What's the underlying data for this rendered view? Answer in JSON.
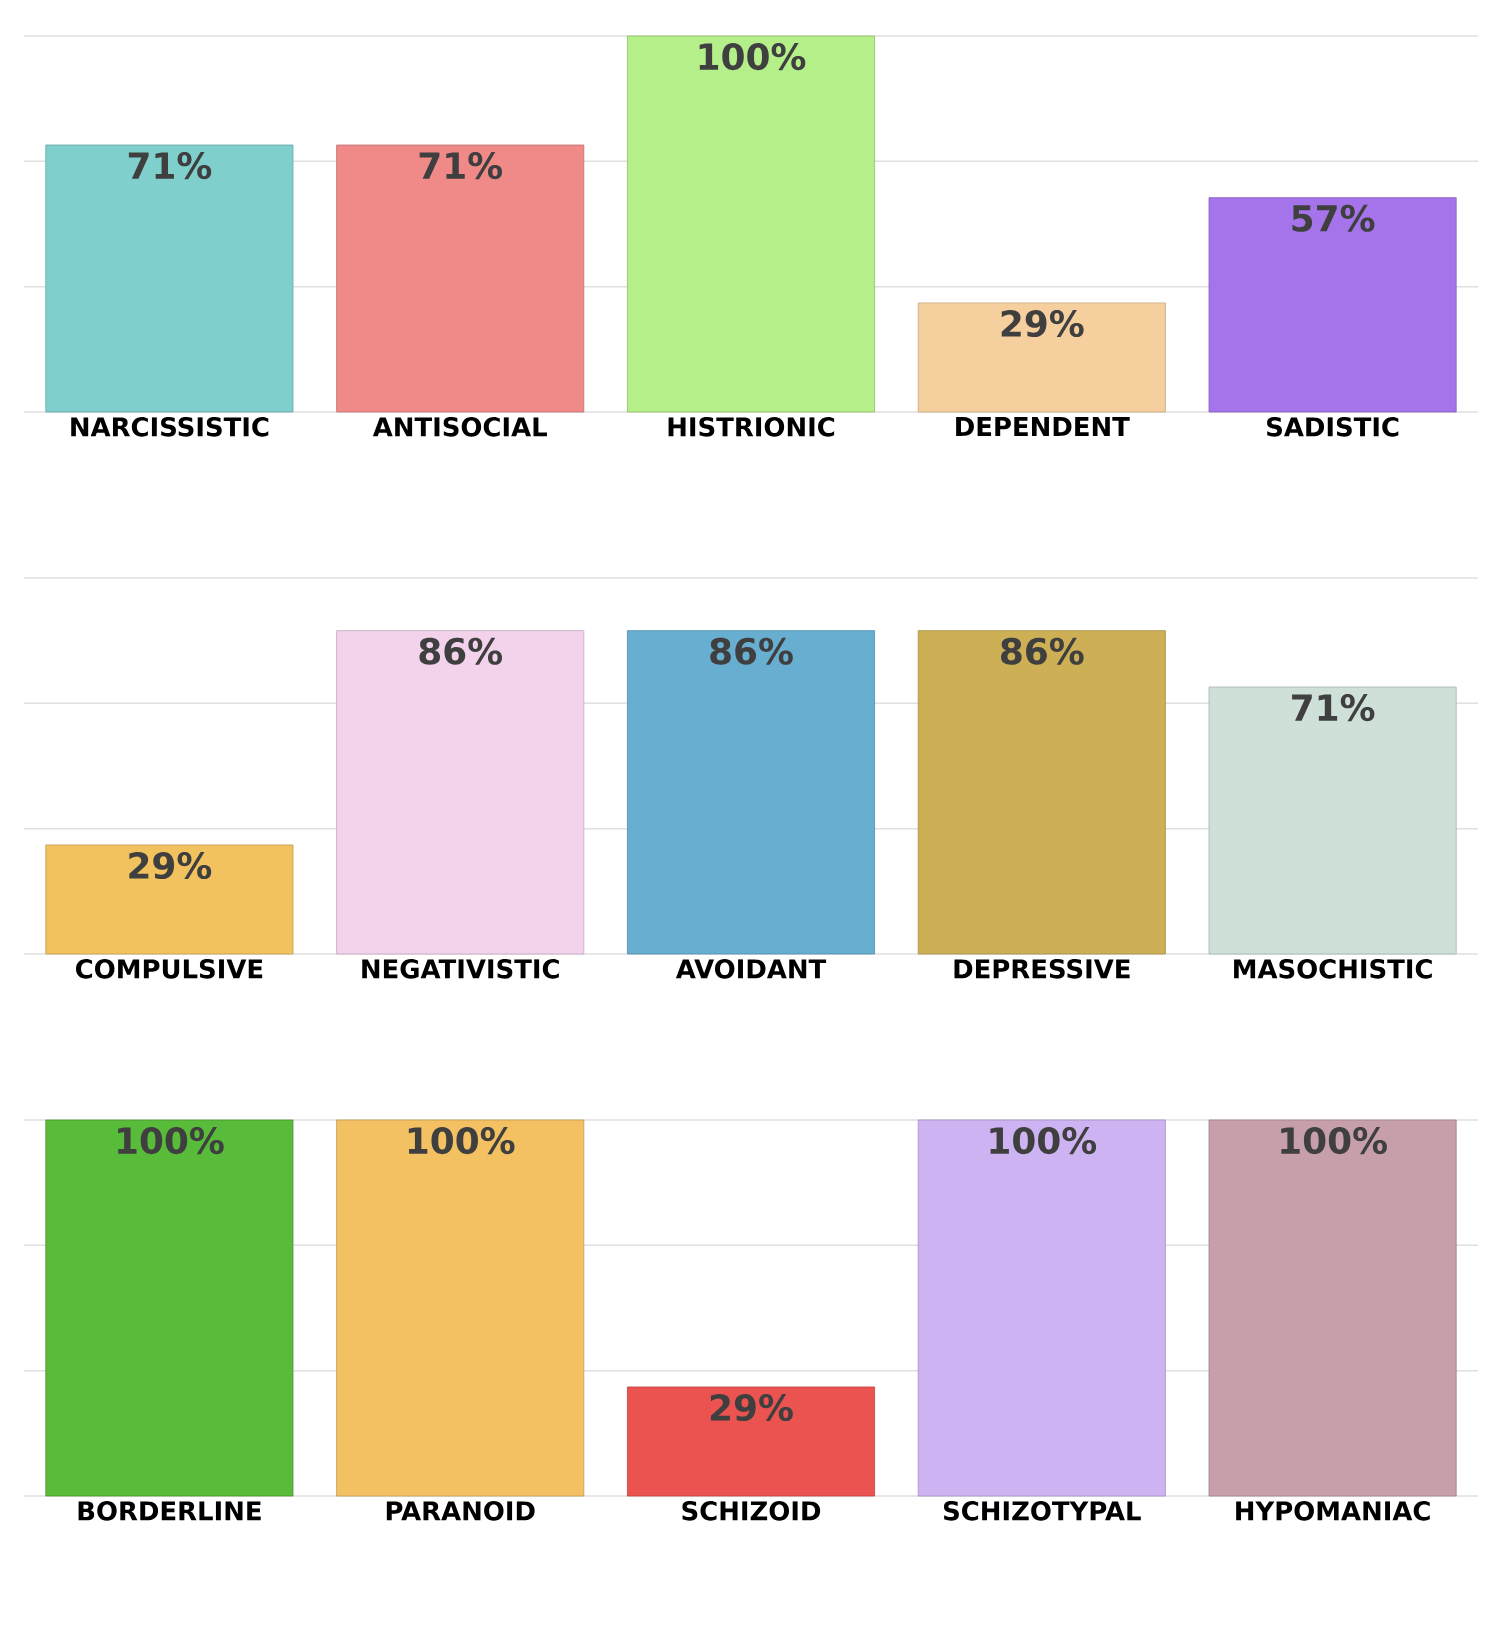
{
  "chart_data": [
    {
      "type": "bar",
      "categories": [
        "NARCISSISTIC",
        "ANTISOCIAL",
        "HISTRIONIC",
        "DEPENDENT",
        "SADISTIC"
      ],
      "values": [
        71,
        71,
        100,
        29,
        57
      ],
      "value_labels": [
        "71%",
        "71%",
        "100%",
        "29%",
        "57%"
      ],
      "colors": [
        "#7fd0cc",
        "#ef8a88",
        "#b5ef8a",
        "#f6cf9e",
        "#a674ea"
      ],
      "ylim": [
        0,
        100
      ],
      "yticks": [
        {
          "value": 0,
          "label": null
        },
        {
          "value": 33.3,
          "label": null
        },
        {
          "value": 66.7,
          "label": null
        },
        {
          "value": 100,
          "label": null
        }
      ],
      "grid": "y",
      "tick_labels": "x"
    },
    {
      "type": "bar",
      "categories": [
        "COMPULSIVE",
        "NEGATIVISTIC",
        "AVOIDANT",
        "DEPRESSIVE",
        "MASOCHISTIC"
      ],
      "values": [
        29,
        86,
        86,
        86,
        71
      ],
      "value_labels": [
        "29%",
        "86%",
        "86%",
        "86%",
        "71%"
      ],
      "colors": [
        "#f2c25e",
        "#f3d2ec",
        "#68aed1",
        "#cdb055",
        "#cfe0d8"
      ],
      "ylim": [
        0,
        100
      ],
      "yticks": [
        {
          "value": 0,
          "label": null
        },
        {
          "value": 33.3,
          "label": null
        },
        {
          "value": 66.7,
          "label": null
        },
        {
          "value": 100,
          "label": null
        }
      ],
      "grid": "y",
      "tick_labels": "x"
    },
    {
      "type": "bar",
      "categories": [
        "BORDERLINE",
        "PARANOID",
        "SCHIZOID",
        "SCHIZOTYPAL",
        "HYPOMANIAC"
      ],
      "values": [
        100,
        100,
        29,
        100,
        100
      ],
      "value_labels": [
        "100%",
        "100%",
        "29%",
        "100%",
        "100%"
      ],
      "colors": [
        "#58bb3a",
        "#f3c062",
        "#ea5350",
        "#cdb3f2",
        "#c79fab"
      ],
      "ylim": [
        0,
        100
      ],
      "yticks": [
        {
          "value": 0,
          "label": null
        },
        {
          "value": 33.3,
          "label": null
        },
        {
          "value": 66.7,
          "label": null
        },
        {
          "value": 100,
          "label": null
        }
      ],
      "grid": "y",
      "tick_labels": "x"
    }
  ]
}
